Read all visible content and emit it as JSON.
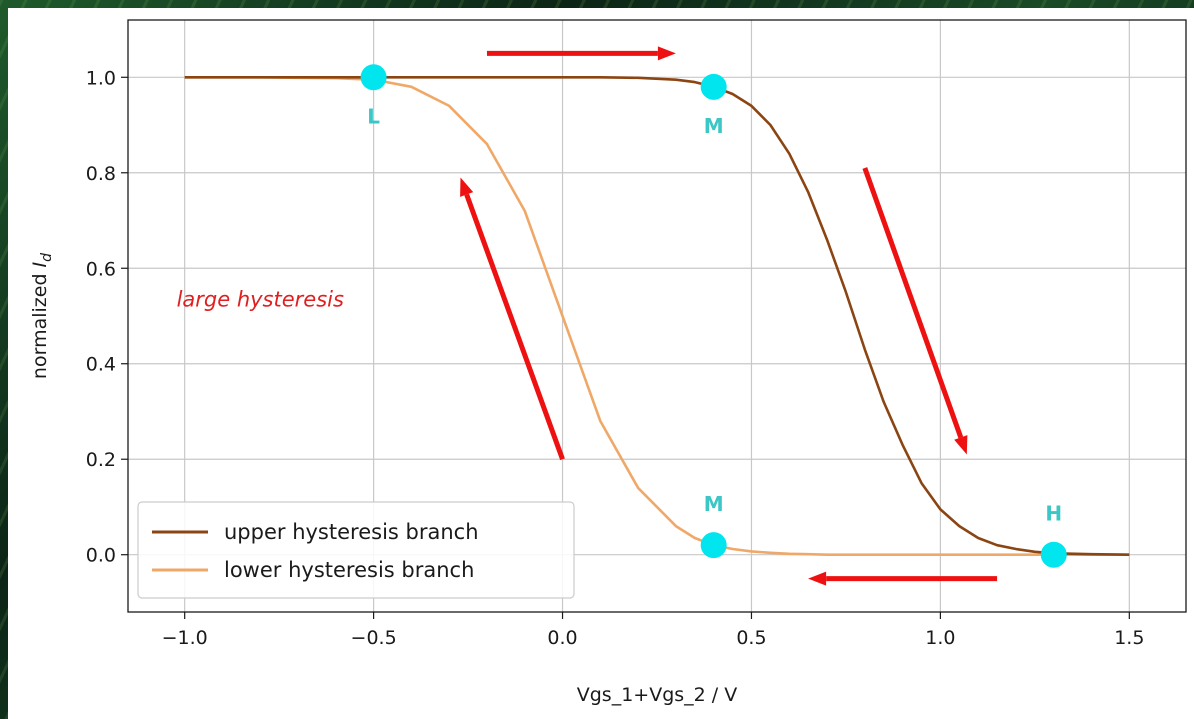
{
  "chart_data": {
    "type": "line",
    "title": "",
    "xlabel": "Vgs_1+Vgs_2  / V",
    "ylabel_prefix": "normalized ",
    "ylabel_var": "I",
    "ylabel_sub": "d",
    "xlim": [
      -1.15,
      1.65
    ],
    "ylim": [
      -0.12,
      1.12
    ],
    "xticks": [
      -1.0,
      -0.5,
      0.0,
      0.5,
      1.0,
      1.5
    ],
    "xtick_labels": [
      "−1.0",
      "−0.5",
      "0.0",
      "0.5",
      "1.0",
      "1.5"
    ],
    "yticks": [
      0.0,
      0.2,
      0.4,
      0.6,
      0.8,
      1.0
    ],
    "ytick_labels": [
      "0.0",
      "0.2",
      "0.4",
      "0.6",
      "0.8",
      "1.0"
    ],
    "grid": true,
    "legend_position": "bottom-left",
    "x": [
      -1.0,
      -0.9,
      -0.8,
      -0.7,
      -0.6,
      -0.5,
      -0.4,
      -0.3,
      -0.2,
      -0.1,
      0.0,
      0.1,
      0.2,
      0.3,
      0.35,
      0.4,
      0.45,
      0.5,
      0.55,
      0.6,
      0.65,
      0.7,
      0.75,
      0.8,
      0.85,
      0.9,
      0.95,
      1.0,
      1.05,
      1.1,
      1.15,
      1.2,
      1.25,
      1.3,
      1.4,
      1.5
    ],
    "series": [
      {
        "name": "upper hysteresis branch",
        "color": "#8b4513",
        "values": [
          1.0,
          1.0,
          1.0,
          1.0,
          1.0,
          1.0,
          1.0,
          1.0,
          1.0,
          1.0,
          1.0,
          1.0,
          0.999,
          0.995,
          0.99,
          0.98,
          0.965,
          0.94,
          0.9,
          0.84,
          0.76,
          0.66,
          0.55,
          0.43,
          0.32,
          0.23,
          0.15,
          0.095,
          0.06,
          0.035,
          0.02,
          0.012,
          0.006,
          0.003,
          0.001,
          0.0
        ]
      },
      {
        "name": "lower hysteresis branch",
        "color": "#f0a868",
        "values": [
          1.0,
          1.0,
          1.0,
          0.999,
          0.998,
          0.995,
          0.98,
          0.94,
          0.86,
          0.72,
          0.5,
          0.28,
          0.14,
          0.06,
          0.035,
          0.02,
          0.012,
          0.007,
          0.004,
          0.002,
          0.001,
          0.0,
          0.0,
          0.0,
          0.0,
          0.0,
          0.0,
          0.0,
          0.0,
          0.0,
          0.0,
          0.0,
          0.0,
          0.0,
          0.0,
          0.0
        ]
      }
    ],
    "markers": [
      {
        "label": "L",
        "x": -0.5,
        "y": 1.0,
        "label_pos": "below"
      },
      {
        "label": "M",
        "x": 0.4,
        "y": 0.98,
        "label_pos": "below"
      },
      {
        "label": "M",
        "x": 0.4,
        "y": 0.02,
        "label_pos": "above"
      },
      {
        "label": "H",
        "x": 1.3,
        "y": 0.0,
        "label_pos": "above"
      }
    ],
    "marker_color": "#00e5ee",
    "arrows": [
      {
        "from": [
          -0.2,
          1.05
        ],
        "to": [
          0.3,
          1.05
        ]
      },
      {
        "from": [
          0.8,
          0.81
        ],
        "to": [
          1.07,
          0.21
        ]
      },
      {
        "from": [
          1.15,
          -0.05
        ],
        "to": [
          0.65,
          -0.05
        ]
      },
      {
        "from": [
          0.0,
          0.2
        ],
        "to": [
          -0.27,
          0.79
        ]
      }
    ],
    "arrow_color": "#ee1111",
    "annotations": [
      {
        "text": "large hysteresis",
        "x": -0.8,
        "y": 0.52
      }
    ]
  }
}
